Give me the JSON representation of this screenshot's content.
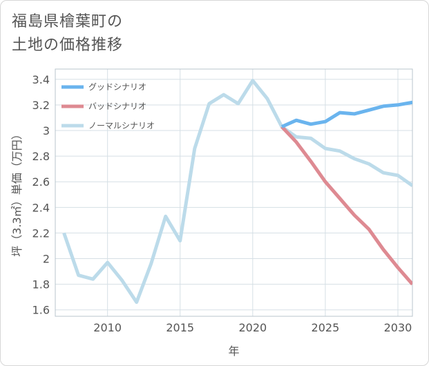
{
  "page": {
    "title_line1": "福島県檜葉町の",
    "title_line2": "土地の価格推移"
  },
  "chart_data": {
    "type": "line",
    "xlabel": "年",
    "ylabel": "坪（3.3㎡）単価（万円）",
    "xlim": [
      2006.4,
      2031
    ],
    "ylim": [
      1.55,
      3.48
    ],
    "x_ticks": [
      2010,
      2015,
      2020,
      2025,
      2030
    ],
    "y_ticks": [
      1.6,
      1.8,
      2,
      2.2,
      2.4,
      2.6,
      2.8,
      3,
      3.2,
      3.4
    ],
    "legend_position": "top-left",
    "series": [
      {
        "name": "グッドシナリオ",
        "color": "#6ab4ee",
        "x": [
          2022,
          2023,
          2024,
          2025,
          2026,
          2027,
          2028,
          2029,
          2030,
          2031
        ],
        "values": [
          3.03,
          3.08,
          3.05,
          3.07,
          3.14,
          3.13,
          3.16,
          3.19,
          3.2,
          3.22
        ]
      },
      {
        "name": "バッドシナリオ",
        "color": "#de8a92",
        "x": [
          2022,
          2023,
          2024,
          2025,
          2026,
          2027,
          2028,
          2029,
          2030,
          2031
        ],
        "values": [
          3.03,
          2.91,
          2.76,
          2.6,
          2.47,
          2.34,
          2.23,
          2.07,
          1.93,
          1.8
        ]
      },
      {
        "name": "ノーマルシナリオ",
        "color": "#bcdbea",
        "x": [
          2007,
          2008,
          2009,
          2010,
          2011,
          2012,
          2013,
          2014,
          2015,
          2016,
          2017,
          2018,
          2019,
          2020,
          2021,
          2022,
          2023,
          2024,
          2025,
          2026,
          2027,
          2028,
          2029,
          2030,
          2031
        ],
        "values": [
          2.2,
          1.87,
          1.84,
          1.97,
          1.83,
          1.66,
          1.96,
          2.33,
          2.14,
          2.86,
          3.21,
          3.28,
          3.21,
          3.39,
          3.25,
          3.03,
          2.95,
          2.94,
          2.86,
          2.84,
          2.78,
          2.74,
          2.67,
          2.65,
          2.57
        ]
      }
    ]
  }
}
